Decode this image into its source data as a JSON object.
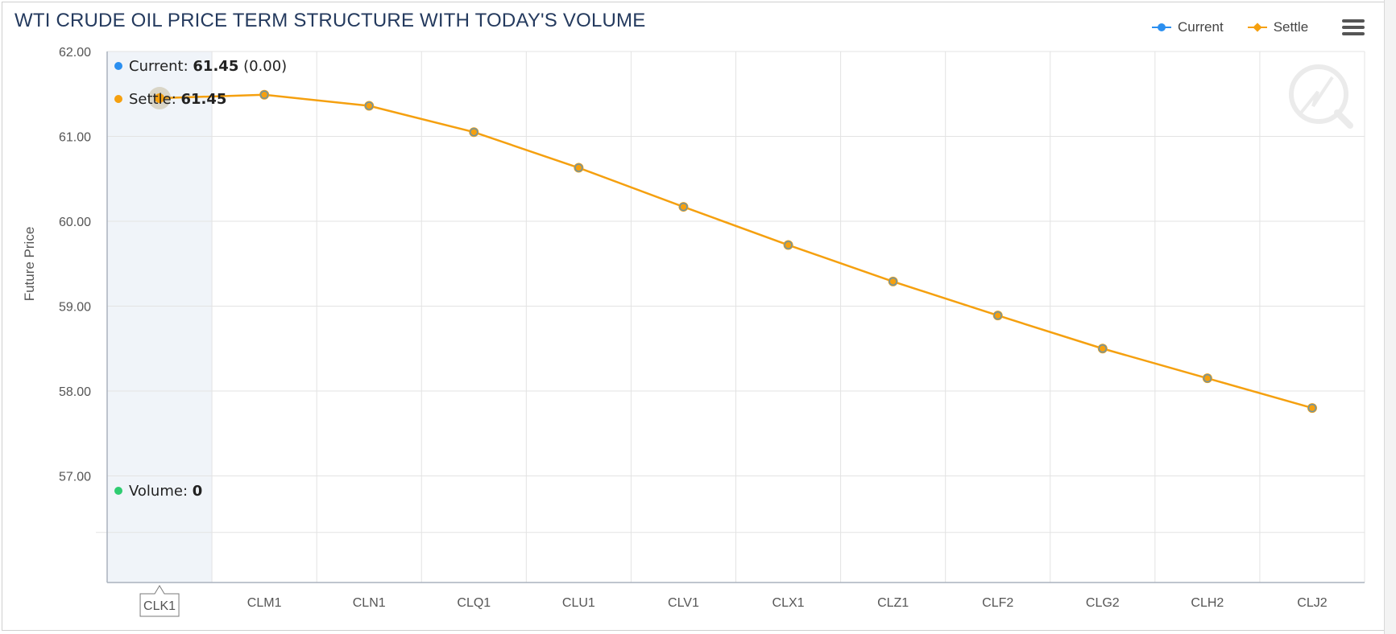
{
  "title": "WTI CRUDE OIL PRICE TERM STRUCTURE WITH TODAY'S VOLUME",
  "legend": [
    {
      "name": "Current",
      "color": "#2b8ff0",
      "symbol": "circle"
    },
    {
      "name": "Settle",
      "color": "#f5a00f",
      "symbol": "diamond"
    }
  ],
  "menu_icon": "hamburger-menu-icon",
  "watermark_icon": "quote-logo-icon",
  "tooltip": {
    "current_label": "Current: ",
    "current_value": "61.45",
    "current_change": " (0.00)",
    "settle_label": "Settle: ",
    "settle_value": "61.45",
    "volume_label": "Volume: ",
    "volume_value": "0",
    "volume_color": "#2ecc71"
  },
  "chart_data": {
    "type": "line",
    "categories": [
      "CLK1",
      "CLM1",
      "CLN1",
      "CLQ1",
      "CLU1",
      "CLV1",
      "CLX1",
      "CLZ1",
      "CLF2",
      "CLG2",
      "CLH2",
      "CLJ2"
    ],
    "series": [
      {
        "name": "Settle",
        "color": "#f5a00f",
        "values": [
          61.45,
          61.49,
          61.36,
          61.05,
          60.63,
          60.17,
          59.72,
          59.29,
          58.89,
          58.5,
          58.15,
          57.8
        ]
      },
      {
        "name": "Current",
        "color": "#2b8ff0",
        "values": [
          61.45,
          61.49,
          61.36,
          61.05,
          60.63,
          60.17,
          59.72,
          59.29,
          58.89,
          58.5,
          58.15,
          57.8
        ]
      }
    ],
    "ylabel": "Future Price",
    "xlabel": "",
    "yticks": [
      "62.00",
      "61.00",
      "60.00",
      "59.00",
      "58.00",
      "57.00"
    ],
    "ylim": [
      57.0,
      62.0
    ],
    "highlighted_category": "CLK1",
    "grid": true
  }
}
